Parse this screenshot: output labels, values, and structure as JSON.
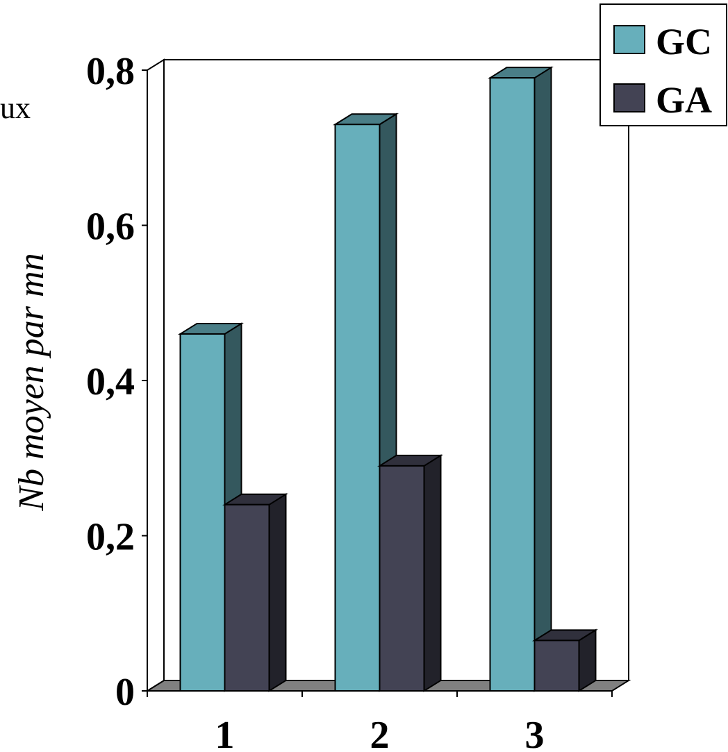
{
  "partial_text": "ux",
  "chart_data": {
    "type": "bar",
    "categories": [
      "1",
      "2",
      "3"
    ],
    "series": [
      {
        "name": "GC",
        "values": [
          0.46,
          0.73,
          0.79
        ],
        "color": "#67AFBB"
      },
      {
        "name": "GA",
        "values": [
          0.24,
          0.29,
          0.065
        ],
        "color": "#434354"
      }
    ],
    "ylabel": "Nb moyen par mn",
    "xlabel": "",
    "ylim": [
      0,
      0.8
    ],
    "yticks": [
      "0",
      "0,2",
      "0,4",
      "0,6",
      "0,8"
    ],
    "legend_position": "top-right",
    "grid": false,
    "three_d": true
  }
}
